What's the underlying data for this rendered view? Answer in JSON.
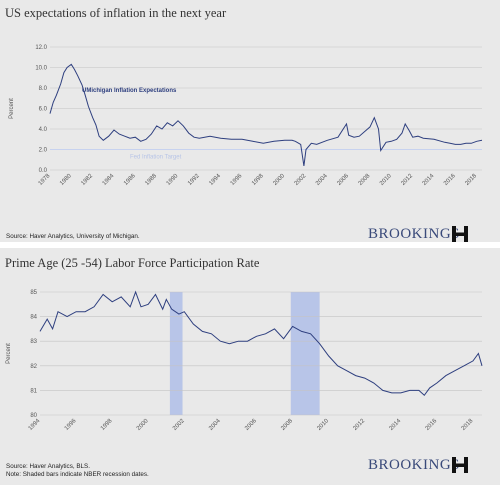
{
  "chart_data": [
    {
      "type": "line",
      "title": "US expectations of inflation  in the next year",
      "ylabel": "Percent",
      "ylim": [
        0.0,
        12.0
      ],
      "yticks": [
        "0.0",
        "2.0",
        "4.0",
        "6.0",
        "8.0",
        "10.0",
        "12.0"
      ],
      "xlim": [
        1978,
        2018.5
      ],
      "xticks": [
        "1978",
        "1980",
        "1982",
        "1984",
        "1986",
        "1988",
        "1990",
        "1992",
        "1994",
        "1996",
        "1998",
        "2000",
        "2002",
        "2004",
        "2006",
        "2008",
        "2010",
        "2012",
        "2014",
        "2016",
        "2018"
      ],
      "grid": true,
      "series": [
        {
          "name": "UMichigan Inflation Expectations",
          "color": "#2e3f7f",
          "points": [
            [
              1978.0,
              5.5
            ],
            [
              1978.3,
              6.6
            ],
            [
              1978.6,
              7.3
            ],
            [
              1979.0,
              8.4
            ],
            [
              1979.3,
              9.5
            ],
            [
              1979.6,
              10.0
            ],
            [
              1980.0,
              10.3
            ],
            [
              1980.3,
              9.8
            ],
            [
              1980.6,
              9.2
            ],
            [
              1981.0,
              8.3
            ],
            [
              1981.3,
              7.3
            ],
            [
              1981.6,
              6.2
            ],
            [
              1982.0,
              5.1
            ],
            [
              1982.3,
              4.4
            ],
            [
              1982.6,
              3.3
            ],
            [
              1983.0,
              2.9
            ],
            [
              1983.5,
              3.3
            ],
            [
              1984.0,
              3.9
            ],
            [
              1984.5,
              3.5
            ],
            [
              1985.0,
              3.3
            ],
            [
              1985.5,
              3.1
            ],
            [
              1986.0,
              3.2
            ],
            [
              1986.5,
              2.8
            ],
            [
              1987.0,
              3.0
            ],
            [
              1987.5,
              3.5
            ],
            [
              1988.0,
              4.3
            ],
            [
              1988.5,
              4.0
            ],
            [
              1989.0,
              4.6
            ],
            [
              1989.5,
              4.3
            ],
            [
              1990.0,
              4.8
            ],
            [
              1990.5,
              4.3
            ],
            [
              1991.0,
              3.6
            ],
            [
              1991.5,
              3.2
            ],
            [
              1992.0,
              3.1
            ],
            [
              1993.0,
              3.3
            ],
            [
              1994.0,
              3.1
            ],
            [
              1995.0,
              3.0
            ],
            [
              1996.0,
              3.0
            ],
            [
              1997.0,
              2.8
            ],
            [
              1998.0,
              2.6
            ],
            [
              1999.0,
              2.8
            ],
            [
              2000.0,
              2.9
            ],
            [
              2000.7,
              2.9
            ],
            [
              2001.0,
              2.8
            ],
            [
              2001.5,
              2.5
            ],
            [
              2001.8,
              0.4
            ],
            [
              2002.0,
              2.0
            ],
            [
              2002.5,
              2.6
            ],
            [
              2003.0,
              2.5
            ],
            [
              2004.0,
              2.9
            ],
            [
              2005.0,
              3.2
            ],
            [
              2005.8,
              4.5
            ],
            [
              2006.0,
              3.4
            ],
            [
              2006.5,
              3.2
            ],
            [
              2007.0,
              3.3
            ],
            [
              2008.0,
              4.2
            ],
            [
              2008.4,
              5.1
            ],
            [
              2008.8,
              4.0
            ],
            [
              2009.0,
              1.9
            ],
            [
              2009.5,
              2.7
            ],
            [
              2010.0,
              2.8
            ],
            [
              2010.5,
              3.0
            ],
            [
              2011.0,
              3.6
            ],
            [
              2011.3,
              4.5
            ],
            [
              2011.7,
              3.8
            ],
            [
              2012.0,
              3.2
            ],
            [
              2012.5,
              3.3
            ],
            [
              2013.0,
              3.1
            ],
            [
              2014.0,
              3.0
            ],
            [
              2015.0,
              2.7
            ],
            [
              2015.5,
              2.6
            ],
            [
              2016.0,
              2.5
            ],
            [
              2016.5,
              2.5
            ],
            [
              2017.0,
              2.6
            ],
            [
              2017.5,
              2.6
            ],
            [
              2018.0,
              2.8
            ],
            [
              2018.5,
              2.9
            ]
          ]
        }
      ],
      "reference": {
        "label": "Fed Inflation Target",
        "value": 2.0
      },
      "source": "Source: Haver  Analytics, University of Michigan."
    },
    {
      "type": "line",
      "title": "Prime Age (25 -54) Labor Force Participation  Rate",
      "ylabel": "Percent",
      "ylim": [
        80,
        85
      ],
      "yticks": [
        "80",
        "81",
        "82",
        "83",
        "84",
        "85"
      ],
      "xlim": [
        1994,
        2018.5
      ],
      "xticks": [
        "1994",
        "1996",
        "1998",
        "2000",
        "2002",
        "2004",
        "2006",
        "2008",
        "2010",
        "2012",
        "2014",
        "2016",
        "2018"
      ],
      "grid": true,
      "recessions": [
        [
          2001.2,
          2001.9
        ],
        [
          2007.9,
          2009.5
        ]
      ],
      "series": [
        {
          "name": "",
          "color": "#2e3f7f",
          "points": [
            [
              1994.0,
              83.4
            ],
            [
              1994.4,
              83.9
            ],
            [
              1994.7,
              83.5
            ],
            [
              1995.0,
              84.2
            ],
            [
              1995.5,
              84.0
            ],
            [
              1996.0,
              84.2
            ],
            [
              1996.5,
              84.2
            ],
            [
              1997.0,
              84.4
            ],
            [
              1997.5,
              84.9
            ],
            [
              1998.0,
              84.6
            ],
            [
              1998.5,
              84.8
            ],
            [
              1999.0,
              84.4
            ],
            [
              1999.3,
              85.0
            ],
            [
              1999.6,
              84.4
            ],
            [
              2000.0,
              84.5
            ],
            [
              2000.4,
              84.9
            ],
            [
              2000.8,
              84.3
            ],
            [
              2001.0,
              84.7
            ],
            [
              2001.3,
              84.3
            ],
            [
              2001.7,
              84.1
            ],
            [
              2002.0,
              84.2
            ],
            [
              2002.5,
              83.7
            ],
            [
              2003.0,
              83.4
            ],
            [
              2003.5,
              83.3
            ],
            [
              2004.0,
              83.0
            ],
            [
              2004.5,
              82.9
            ],
            [
              2005.0,
              83.0
            ],
            [
              2005.5,
              83.0
            ],
            [
              2006.0,
              83.2
            ],
            [
              2006.5,
              83.3
            ],
            [
              2007.0,
              83.5
            ],
            [
              2007.5,
              83.1
            ],
            [
              2008.0,
              83.6
            ],
            [
              2008.5,
              83.4
            ],
            [
              2009.0,
              83.3
            ],
            [
              2009.5,
              82.9
            ],
            [
              2010.0,
              82.4
            ],
            [
              2010.5,
              82.0
            ],
            [
              2011.0,
              81.8
            ],
            [
              2011.5,
              81.6
            ],
            [
              2012.0,
              81.5
            ],
            [
              2012.5,
              81.3
            ],
            [
              2013.0,
              81.0
            ],
            [
              2013.5,
              80.9
            ],
            [
              2014.0,
              80.9
            ],
            [
              2014.5,
              81.0
            ],
            [
              2015.0,
              81.0
            ],
            [
              2015.3,
              80.8
            ],
            [
              2015.6,
              81.1
            ],
            [
              2016.0,
              81.3
            ],
            [
              2016.5,
              81.6
            ],
            [
              2017.0,
              81.8
            ],
            [
              2017.5,
              82.0
            ],
            [
              2018.0,
              82.2
            ],
            [
              2018.3,
              82.5
            ],
            [
              2018.5,
              82.0
            ]
          ]
        }
      ],
      "source": "Source: Haver  Analytics, BLS.",
      "note": "Note: Shaded bars indicate NBER recession dates."
    }
  ],
  "brand": {
    "name": "BROOKINGS",
    "color": "#3a4a7a",
    "logo": "brookings-h-logo"
  },
  "colors": {
    "background": "#e9e9e9",
    "grid": "#c4c4c4",
    "line": "#2e3f7f",
    "recession": "#b8c5e8",
    "reference": "#c7d2ef"
  }
}
